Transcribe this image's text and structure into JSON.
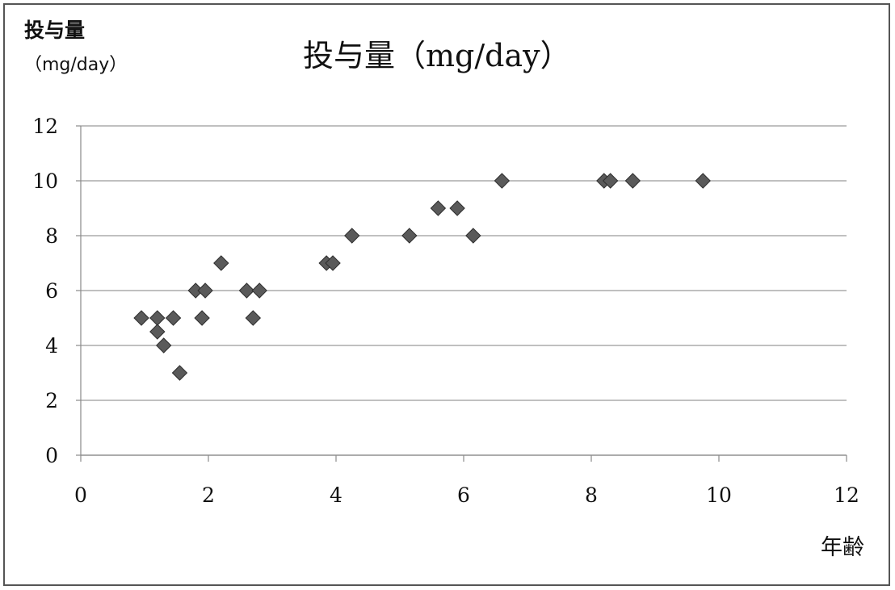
{
  "chart_data": {
    "type": "scatter",
    "title": "投与量（mg/day）",
    "ylabel": "投与量",
    "ylabel_unit": "（mg/day）",
    "xlabel": "年齢",
    "xlim": [
      0,
      12
    ],
    "ylim": [
      0,
      12
    ],
    "xticks": [
      0,
      2,
      4,
      6,
      8,
      10,
      12
    ],
    "yticks": [
      0,
      2,
      4,
      6,
      8,
      10,
      12
    ],
    "grid": "horizontal",
    "legend": "none",
    "marker": "diamond",
    "marker_color": "#5a5a5a",
    "series": [
      {
        "points": [
          [
            0.95,
            5
          ],
          [
            1.2,
            5
          ],
          [
            1.2,
            4.5
          ],
          [
            1.3,
            4
          ],
          [
            1.45,
            5
          ],
          [
            1.55,
            3
          ],
          [
            1.8,
            6
          ],
          [
            1.9,
            5
          ],
          [
            1.95,
            6
          ],
          [
            2.2,
            7
          ],
          [
            2.6,
            6
          ],
          [
            2.7,
            5
          ],
          [
            2.8,
            6
          ],
          [
            3.85,
            7
          ],
          [
            3.95,
            7
          ],
          [
            4.25,
            8
          ],
          [
            5.15,
            8
          ],
          [
            5.6,
            9
          ],
          [
            5.9,
            9
          ],
          [
            6.15,
            8
          ],
          [
            6.6,
            10
          ],
          [
            8.2,
            10
          ],
          [
            8.3,
            10
          ],
          [
            8.65,
            10
          ],
          [
            9.75,
            10
          ]
        ]
      }
    ]
  }
}
